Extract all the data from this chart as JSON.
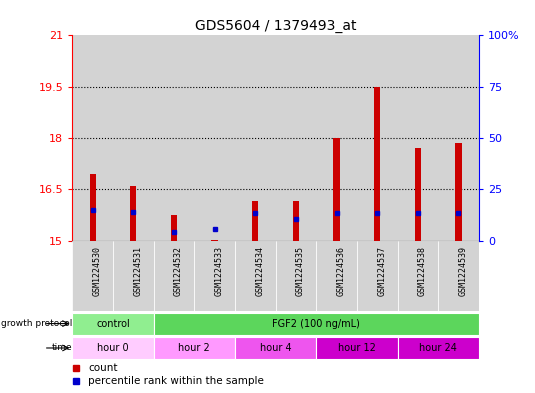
{
  "title": "GDS5604 / 1379493_at",
  "samples": [
    "GSM1224530",
    "GSM1224531",
    "GSM1224532",
    "GSM1224533",
    "GSM1224534",
    "GSM1224535",
    "GSM1224536",
    "GSM1224537",
    "GSM1224538",
    "GSM1224539"
  ],
  "count_values": [
    16.95,
    16.6,
    15.75,
    15.02,
    16.15,
    16.15,
    18.0,
    19.5,
    17.7,
    17.85
  ],
  "percentile_values": [
    15.9,
    15.85,
    15.25,
    15.35,
    15.8,
    15.65,
    15.8,
    15.8,
    15.8,
    15.8
  ],
  "ylim_left": [
    15,
    21
  ],
  "ylim_right": [
    0,
    100
  ],
  "yticks_left": [
    15,
    16.5,
    18,
    19.5,
    21
  ],
  "yticks_right": [
    0,
    25,
    50,
    75,
    100
  ],
  "ytick_labels_left": [
    "15",
    "16.5",
    "18",
    "19.5",
    "21"
  ],
  "ytick_labels_right": [
    "0",
    "25",
    "50",
    "75",
    "100%"
  ],
  "left_color": "#ff0000",
  "right_color": "#0000ff",
  "bar_color": "#cc0000",
  "blue_marker_color": "#0000cc",
  "bar_bottom": 15.0,
  "hlines": [
    16.5,
    18,
    19.5
  ],
  "growth_protocol_cells": [
    {
      "text": "control",
      "start": 0,
      "end": 2,
      "color": "#90ee90"
    },
    {
      "text": "FGF2 (100 ng/mL)",
      "start": 2,
      "end": 10,
      "color": "#5cd65c"
    }
  ],
  "time_cells": [
    {
      "text": "hour 0",
      "start": 0,
      "end": 2,
      "color": "#ffccff"
    },
    {
      "text": "hour 2",
      "start": 2,
      "end": 4,
      "color": "#ff99ff"
    },
    {
      "text": "hour 4",
      "start": 4,
      "end": 6,
      "color": "#ee55ee"
    },
    {
      "text": "hour 12",
      "start": 6,
      "end": 8,
      "color": "#cc00cc"
    },
    {
      "text": "hour 24",
      "start": 8,
      "end": 10,
      "color": "#cc00cc"
    }
  ],
  "col_bg_color": "#d3d3d3",
  "plot_bg": "#ffffff",
  "legend_count_color": "#cc0000",
  "legend_pct_color": "#0000cc",
  "n_samples": 10
}
